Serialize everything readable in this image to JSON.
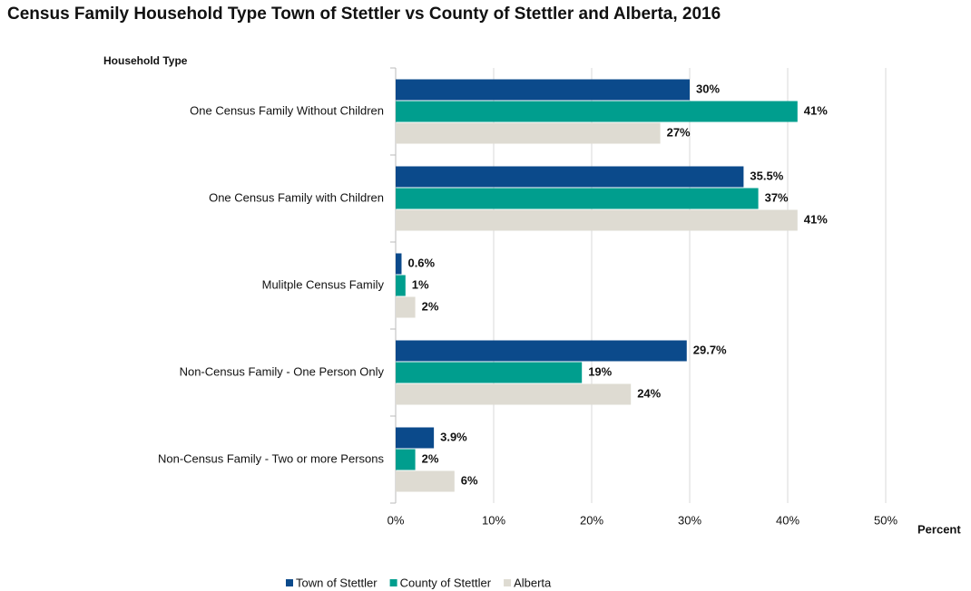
{
  "chart_data": {
    "type": "hbar",
    "title": "Census Family Household Type Town of Stettler vs County of Stettler and Alberta, 2016",
    "y_label": "Household Type",
    "x_label": "Percent",
    "categories": [
      "One Census Family Without Children",
      "One Census Family with Children",
      "Mulitple Census Family",
      "Non-Census Family - One Person Only",
      "Non-Census Family - Two or more Persons"
    ],
    "series": [
      {
        "name": "Town of Stettler",
        "color": "#0b4a8b",
        "values": [
          30,
          35.5,
          0.6,
          29.7,
          3.9
        ],
        "value_labels": [
          "30%",
          "35.5%",
          "0.6%",
          "29.7%",
          "3.9%"
        ]
      },
      {
        "name": "County of Stettler",
        "color": "#009e8e",
        "values": [
          41,
          37,
          1,
          19,
          2
        ],
        "value_labels": [
          "41%",
          "37%",
          "1%",
          "19%",
          "2%"
        ]
      },
      {
        "name": "Alberta",
        "color": "#dedbd2",
        "values": [
          27,
          41,
          2,
          24,
          6
        ],
        "value_labels": [
          "27%",
          "41%",
          "2%",
          "24%",
          "6%"
        ]
      }
    ],
    "xlim": [
      0,
      50
    ],
    "xticks": [
      {
        "value": 0,
        "label": "0%"
      },
      {
        "value": 10,
        "label": "10%"
      },
      {
        "value": 20,
        "label": "20%"
      },
      {
        "value": 30,
        "label": "30%"
      },
      {
        "value": 40,
        "label": "40%"
      },
      {
        "value": 50,
        "label": "50%"
      }
    ],
    "grid": true,
    "legend": "bottom"
  }
}
